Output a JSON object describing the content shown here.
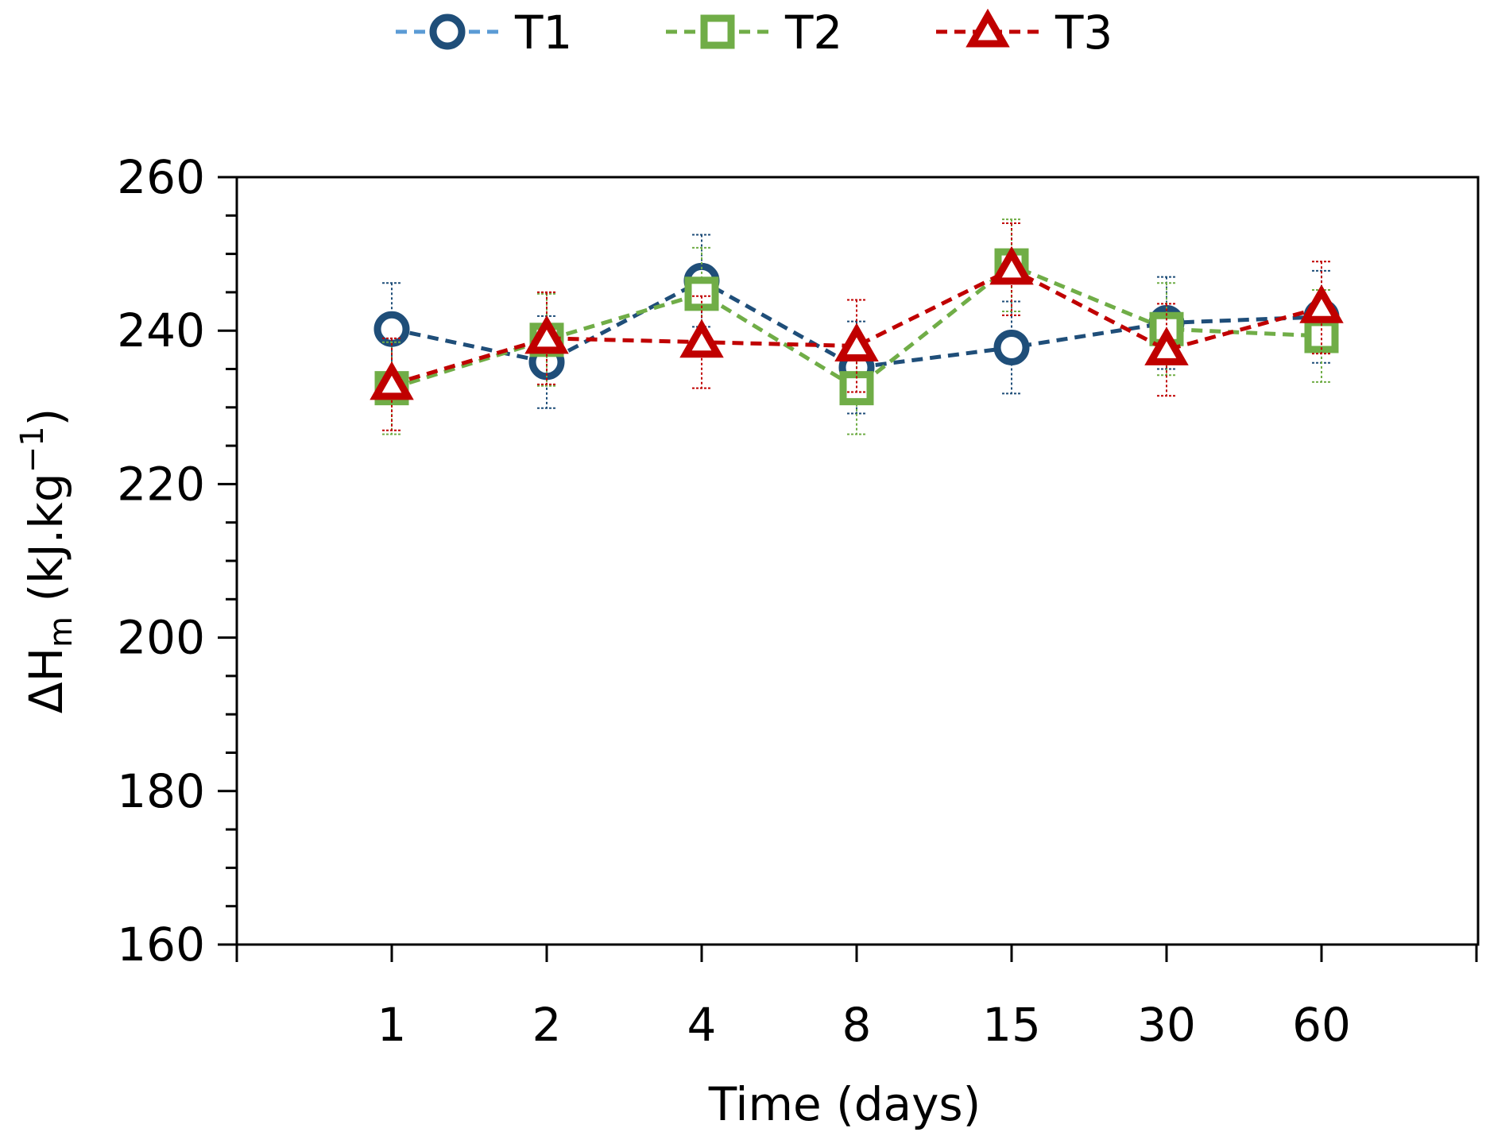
{
  "chart_data": {
    "type": "line",
    "xlabel": "Time (days)",
    "ylabel": {
      "main": "ΔH",
      "subscript": "m",
      "unit_open": " (kJ.kg",
      "superscript": "−1",
      "unit_close": ")"
    },
    "ylim": [
      160,
      260
    ],
    "yticks": [
      "160",
      "180",
      "200",
      "220",
      "240",
      "260"
    ],
    "categories": [
      "1",
      "2",
      "4",
      "8",
      "15",
      "30",
      "60"
    ],
    "grid": false,
    "legend_position": "top",
    "series": [
      {
        "name": "T1",
        "marker": "circle",
        "color": "#1F4E79",
        "legend_line_color": "#5B9BD5",
        "values": [
          240.2,
          235.9,
          246.5,
          235.2,
          237.8,
          241.0,
          241.8
        ],
        "errors": [
          6.0,
          6.0,
          6.0,
          6.0,
          6.0,
          6.0,
          6.0
        ]
      },
      {
        "name": "T2",
        "marker": "square",
        "color": "#70AD47",
        "legend_line_color": "#70AD47",
        "values": [
          232.5,
          238.8,
          244.8,
          232.5,
          248.5,
          240.2,
          239.3
        ],
        "errors": [
          6.0,
          6.0,
          6.0,
          6.0,
          6.0,
          6.0,
          6.0
        ]
      },
      {
        "name": "T3",
        "marker": "triangle",
        "color": "#C00000",
        "legend_line_color": "#C00000",
        "values": [
          233.0,
          239.0,
          238.5,
          238.0,
          248.0,
          237.5,
          243.0
        ],
        "errors": [
          6.0,
          6.0,
          6.0,
          6.0,
          6.0,
          6.0,
          6.0
        ]
      }
    ]
  }
}
